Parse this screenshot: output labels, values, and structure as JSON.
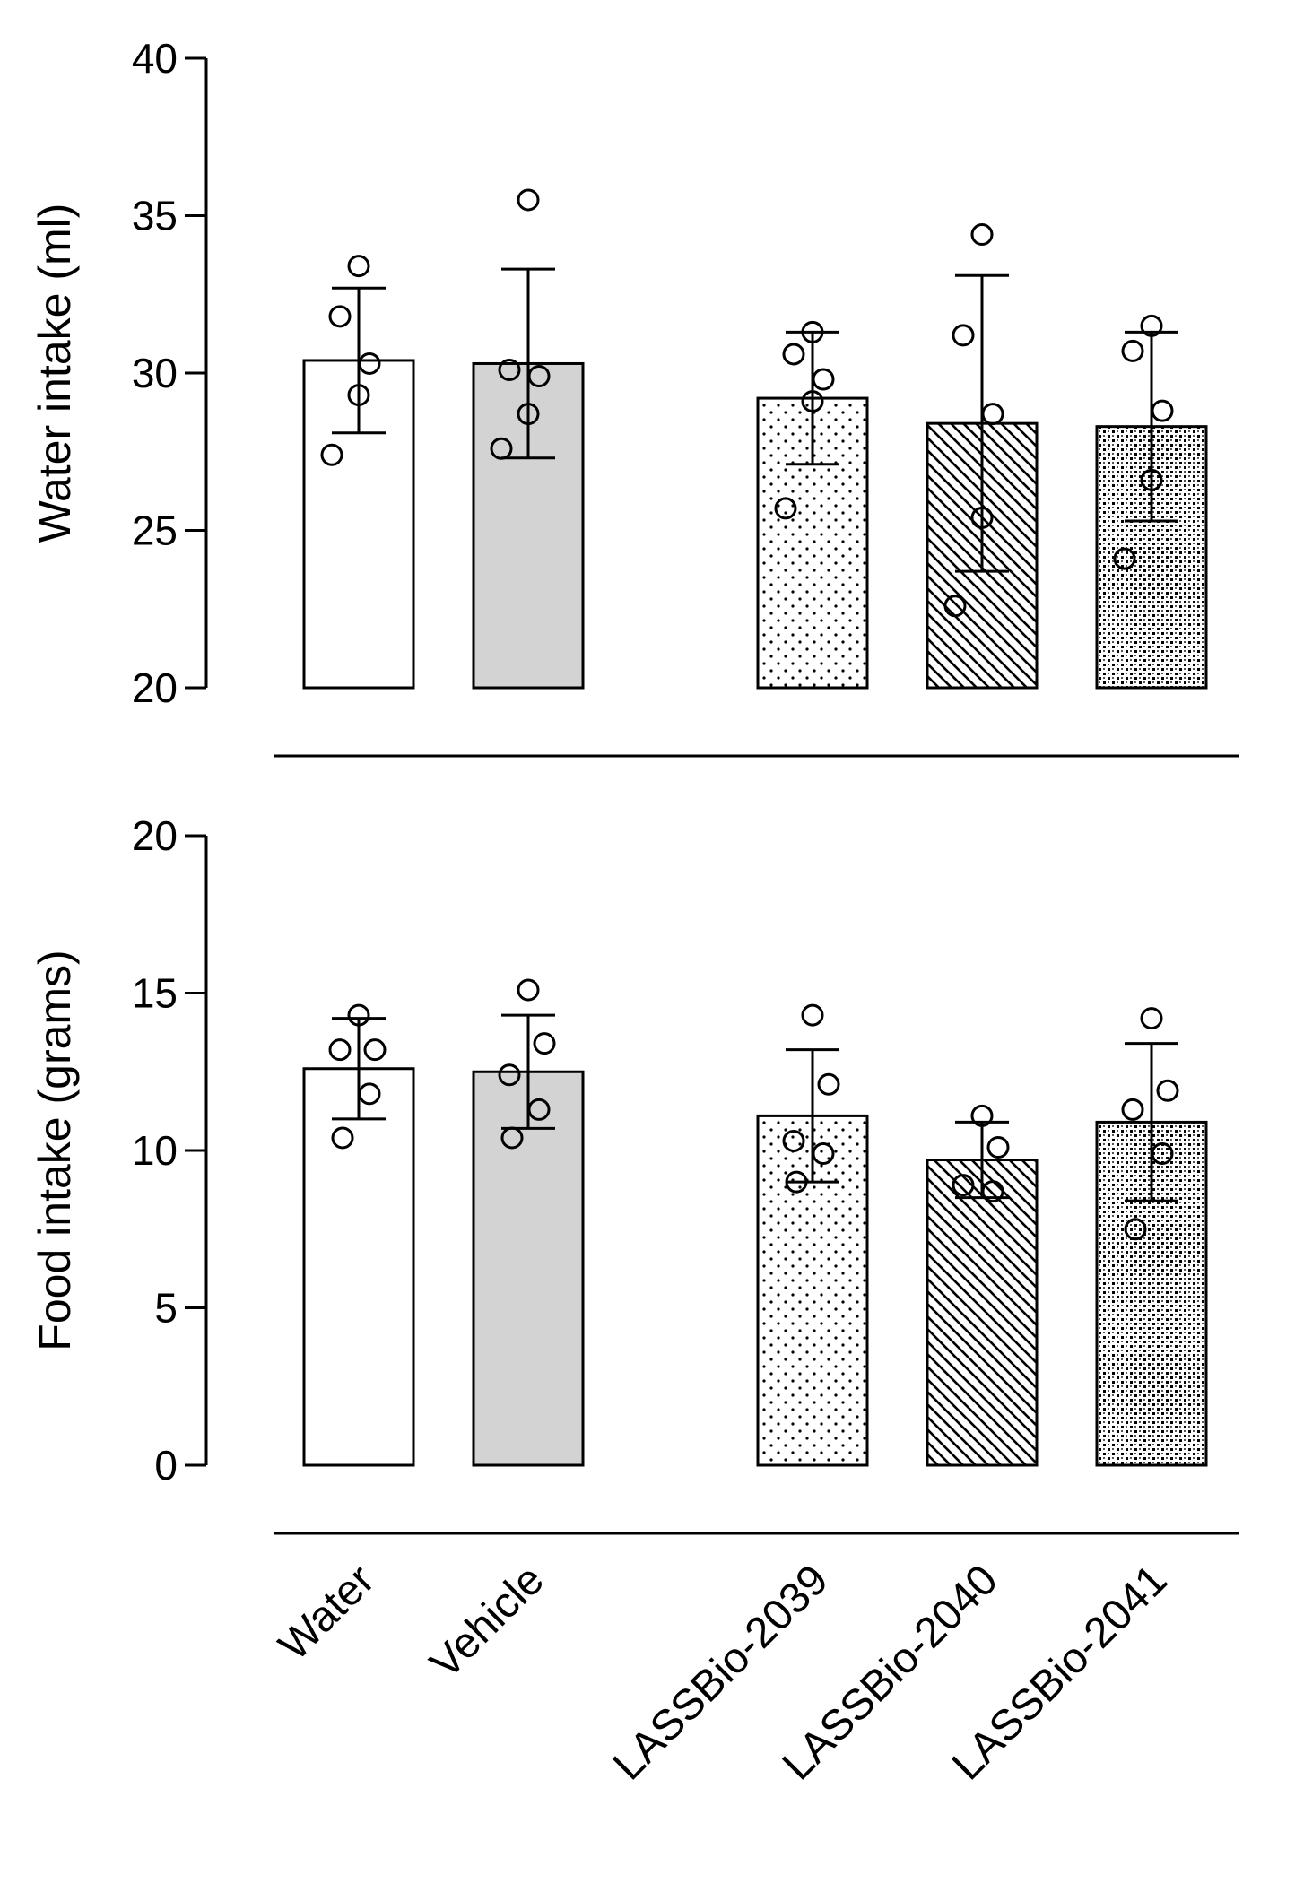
{
  "chart_data": [
    {
      "type": "bar",
      "title": "",
      "ylabel": "Water intake (ml)",
      "xlabel": "",
      "ylim": [
        20,
        40
      ],
      "yticks": [
        20,
        25,
        30,
        35,
        40
      ],
      "categories": [
        "Water",
        "Vehicle",
        "LASSBio-2039",
        "LASSBio-2040",
        "LASSBio-2041"
      ],
      "values": [
        30.4,
        30.3,
        29.2,
        28.4,
        28.3
      ],
      "error": [
        2.3,
        3.0,
        2.1,
        4.7,
        3.0
      ],
      "points": [
        [
          33.4,
          31.8,
          30.3,
          29.3,
          27.4
        ],
        [
          35.5,
          30.1,
          29.9,
          28.7,
          27.6
        ],
        [
          31.3,
          30.6,
          29.8,
          29.1,
          25.7
        ],
        [
          34.4,
          31.2,
          28.7,
          25.4,
          22.6
        ],
        [
          31.5,
          30.7,
          28.8,
          26.6,
          24.1
        ]
      ],
      "fills": [
        "white",
        "gray",
        "dots",
        "hatch",
        "checker"
      ]
    },
    {
      "type": "bar",
      "title": "",
      "ylabel": "Food intake (grams)",
      "xlabel": "",
      "ylim": [
        0,
        20
      ],
      "yticks": [
        0,
        5,
        10,
        15,
        20
      ],
      "categories": [
        "Water",
        "Vehicle",
        "LASSBio-2039",
        "LASSBio-2040",
        "LASSBio-2041"
      ],
      "values": [
        12.6,
        12.5,
        11.1,
        9.7,
        10.9
      ],
      "error": [
        1.6,
        1.8,
        2.1,
        1.2,
        2.5
      ],
      "points": [
        [
          14.3,
          13.2,
          13.2,
          11.8,
          10.4
        ],
        [
          15.1,
          13.4,
          12.4,
          11.3,
          10.4
        ],
        [
          14.3,
          12.1,
          10.3,
          9.9,
          9.0
        ],
        [
          11.1,
          10.1,
          8.9,
          8.7
        ],
        [
          14.2,
          11.9,
          11.3,
          9.9,
          7.5
        ]
      ],
      "fills": [
        "white",
        "gray",
        "dots",
        "hatch",
        "checker"
      ]
    }
  ]
}
